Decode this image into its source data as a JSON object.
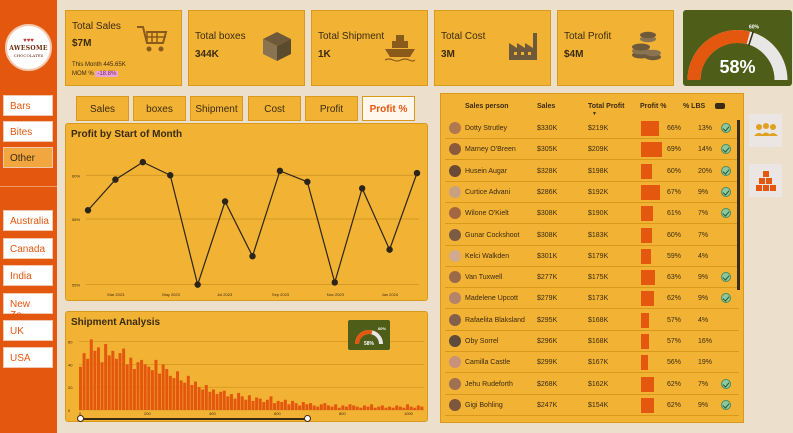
{
  "brand": {
    "line1": "AWESOME",
    "line2": "CHOCOLATES"
  },
  "slicers": {
    "products": [
      {
        "label": "Bars",
        "selected": false
      },
      {
        "label": "Bites",
        "selected": false
      },
      {
        "label": "Other",
        "selected": true
      }
    ],
    "regions": [
      {
        "label": "Australia"
      },
      {
        "label": "Canada"
      },
      {
        "label": "India"
      },
      {
        "label": "New Ze..."
      },
      {
        "label": "UK"
      },
      {
        "label": "USA"
      }
    ]
  },
  "kpis": [
    {
      "title": "Total Sales",
      "value": "$7M",
      "sub_line1": "This Month 445.65K",
      "sub_label": "MOM %",
      "sub_value": "-18.8%",
      "icon": "cart-icon"
    },
    {
      "title": "Total boxes",
      "value": "344K",
      "icon": "box-icon"
    },
    {
      "title": "Total Shipment",
      "value": "1K",
      "icon": "ship-icon"
    },
    {
      "title": "Total Cost",
      "value": "3M",
      "icon": "factory-icon"
    },
    {
      "title": "Total Profit",
      "value": "$4M",
      "icon": "coins-icon"
    }
  ],
  "gauge": {
    "value": "58%",
    "target_label": "60%",
    "fraction": 0.58,
    "target_fraction": 0.6
  },
  "tabs": [
    {
      "label": "Sales",
      "active": false
    },
    {
      "label": "boxes",
      "active": false
    },
    {
      "label": "Shipment",
      "active": false
    },
    {
      "label": "Cost",
      "active": false
    },
    {
      "label": "Profit",
      "active": false
    },
    {
      "label": "Profit %",
      "active": true
    }
  ],
  "colors": {
    "accent": "#e4570f",
    "panel": "#f2b233",
    "dark_green": "#4e5d18",
    "line": "#2b2418"
  },
  "chart_data": [
    {
      "type": "line",
      "title": "Profit by Start of Month",
      "x_tick_labels": [
        "Mar 2023",
        "May 2023",
        "Jul 2023",
        "Sep 2023",
        "Nov 2023",
        "Jan 2024"
      ],
      "y_tick_labels": [
        "60%",
        "58%",
        "55%"
      ],
      "ylim": [
        54.8,
        61.2
      ],
      "values": [
        58.4,
        59.8,
        60.6,
        60.0,
        55.0,
        58.8,
        56.3,
        60.2,
        59.7,
        55.1,
        59.4,
        56.6,
        60.1
      ],
      "grid": true
    },
    {
      "type": "bar",
      "title": "Shipment Analysis",
      "y_tick_labels": [
        "60",
        "40",
        "20",
        "0"
      ],
      "x_tick_labels": [
        "0",
        "200",
        "400",
        "600",
        "800",
        "1000"
      ],
      "ylim": [
        0,
        65
      ],
      "values": [
        38,
        50,
        45,
        62,
        52,
        55,
        42,
        58,
        48,
        52,
        45,
        50,
        54,
        40,
        46,
        36,
        42,
        44,
        40,
        38,
        35,
        44,
        32,
        40,
        36,
        30,
        28,
        34,
        26,
        24,
        30,
        22,
        25,
        20,
        18,
        22,
        16,
        18,
        14,
        16,
        17,
        12,
        14,
        10,
        15,
        12,
        9,
        13,
        8,
        11,
        10,
        7,
        9,
        12,
        6,
        8,
        7,
        9,
        5,
        8,
        6,
        4,
        7,
        5,
        6,
        4,
        3,
        5,
        6,
        4,
        3,
        5,
        2,
        4,
        3,
        5,
        4,
        3,
        2,
        4,
        3,
        5,
        2,
        3,
        4,
        2,
        3,
        2,
        4,
        3,
        2,
        5,
        3,
        2,
        4,
        3
      ],
      "inset_gauge": {
        "label": "60%",
        "value": "58%",
        "fraction": 0.58
      }
    }
  ],
  "table": {
    "headers": [
      "Sales person",
      "Sales",
      "Total Profit",
      "Profit %",
      "% LBS"
    ],
    "rows": [
      {
        "name": "Dotty Strutley",
        "sales": "$330K",
        "profit": "$219K",
        "pct": "66%",
        "pct_value": 66,
        "lbs": "13%",
        "check": true,
        "avatar": "#b07a4e"
      },
      {
        "name": "Marney O'Breen",
        "sales": "$305K",
        "profit": "$209K",
        "pct": "69%",
        "pct_value": 69,
        "lbs": "14%",
        "check": true,
        "avatar": "#8b5a3c"
      },
      {
        "name": "Husein Augar",
        "sales": "$328K",
        "profit": "$198K",
        "pct": "60%",
        "pct_value": 60,
        "lbs": "20%",
        "check": true,
        "avatar": "#6b4a35"
      },
      {
        "name": "Curtice Advani",
        "sales": "$286K",
        "profit": "$192K",
        "pct": "67%",
        "pct_value": 67,
        "lbs": "9%",
        "check": true,
        "avatar": "#c9a080"
      },
      {
        "name": "Wilone O'Kielt",
        "sales": "$308K",
        "profit": "$190K",
        "pct": "61%",
        "pct_value": 61,
        "lbs": "7%",
        "check": true,
        "avatar": "#a3673f"
      },
      {
        "name": "Gunar Cockshoot",
        "sales": "$308K",
        "profit": "$183K",
        "pct": "60%",
        "pct_value": 60,
        "lbs": "7%",
        "check": false,
        "avatar": "#7b5b43"
      },
      {
        "name": "Kelci Walkden",
        "sales": "$301K",
        "profit": "$179K",
        "pct": "59%",
        "pct_value": 59,
        "lbs": "4%",
        "check": false,
        "avatar": "#d3ab8c"
      },
      {
        "name": "Van Tuxwell",
        "sales": "$277K",
        "profit": "$175K",
        "pct": "63%",
        "pct_value": 63,
        "lbs": "9%",
        "check": true,
        "avatar": "#9a6a48"
      },
      {
        "name": "Madelene Upcott",
        "sales": "$279K",
        "profit": "$173K",
        "pct": "62%",
        "pct_value": 62,
        "lbs": "9%",
        "check": true,
        "avatar": "#b5836a"
      },
      {
        "name": "Rafaelita Blaksland",
        "sales": "$295K",
        "profit": "$168K",
        "pct": "57%",
        "pct_value": 57,
        "lbs": "4%",
        "check": false,
        "avatar": "#83604a"
      },
      {
        "name": "Oby Sorrel",
        "sales": "$296K",
        "profit": "$168K",
        "pct": "57%",
        "pct_value": 57,
        "lbs": "16%",
        "check": false,
        "avatar": "#5d4a3b"
      },
      {
        "name": "Camilla Castle",
        "sales": "$299K",
        "profit": "$167K",
        "pct": "56%",
        "pct_value": 56,
        "lbs": "19%",
        "check": false,
        "avatar": "#c7917a"
      },
      {
        "name": "Jehu Rudeforth",
        "sales": "$268K",
        "profit": "$162K",
        "pct": "62%",
        "pct_value": 62,
        "lbs": "7%",
        "check": true,
        "avatar": "#a07050"
      },
      {
        "name": "Gigi Bohling",
        "sales": "$247K",
        "profit": "$154K",
        "pct": "62%",
        "pct_value": 62,
        "lbs": "9%",
        "check": true,
        "avatar": "#7e563c"
      }
    ]
  },
  "right_icons": [
    "people-group-icon",
    "stacked-boxes-icon"
  ]
}
